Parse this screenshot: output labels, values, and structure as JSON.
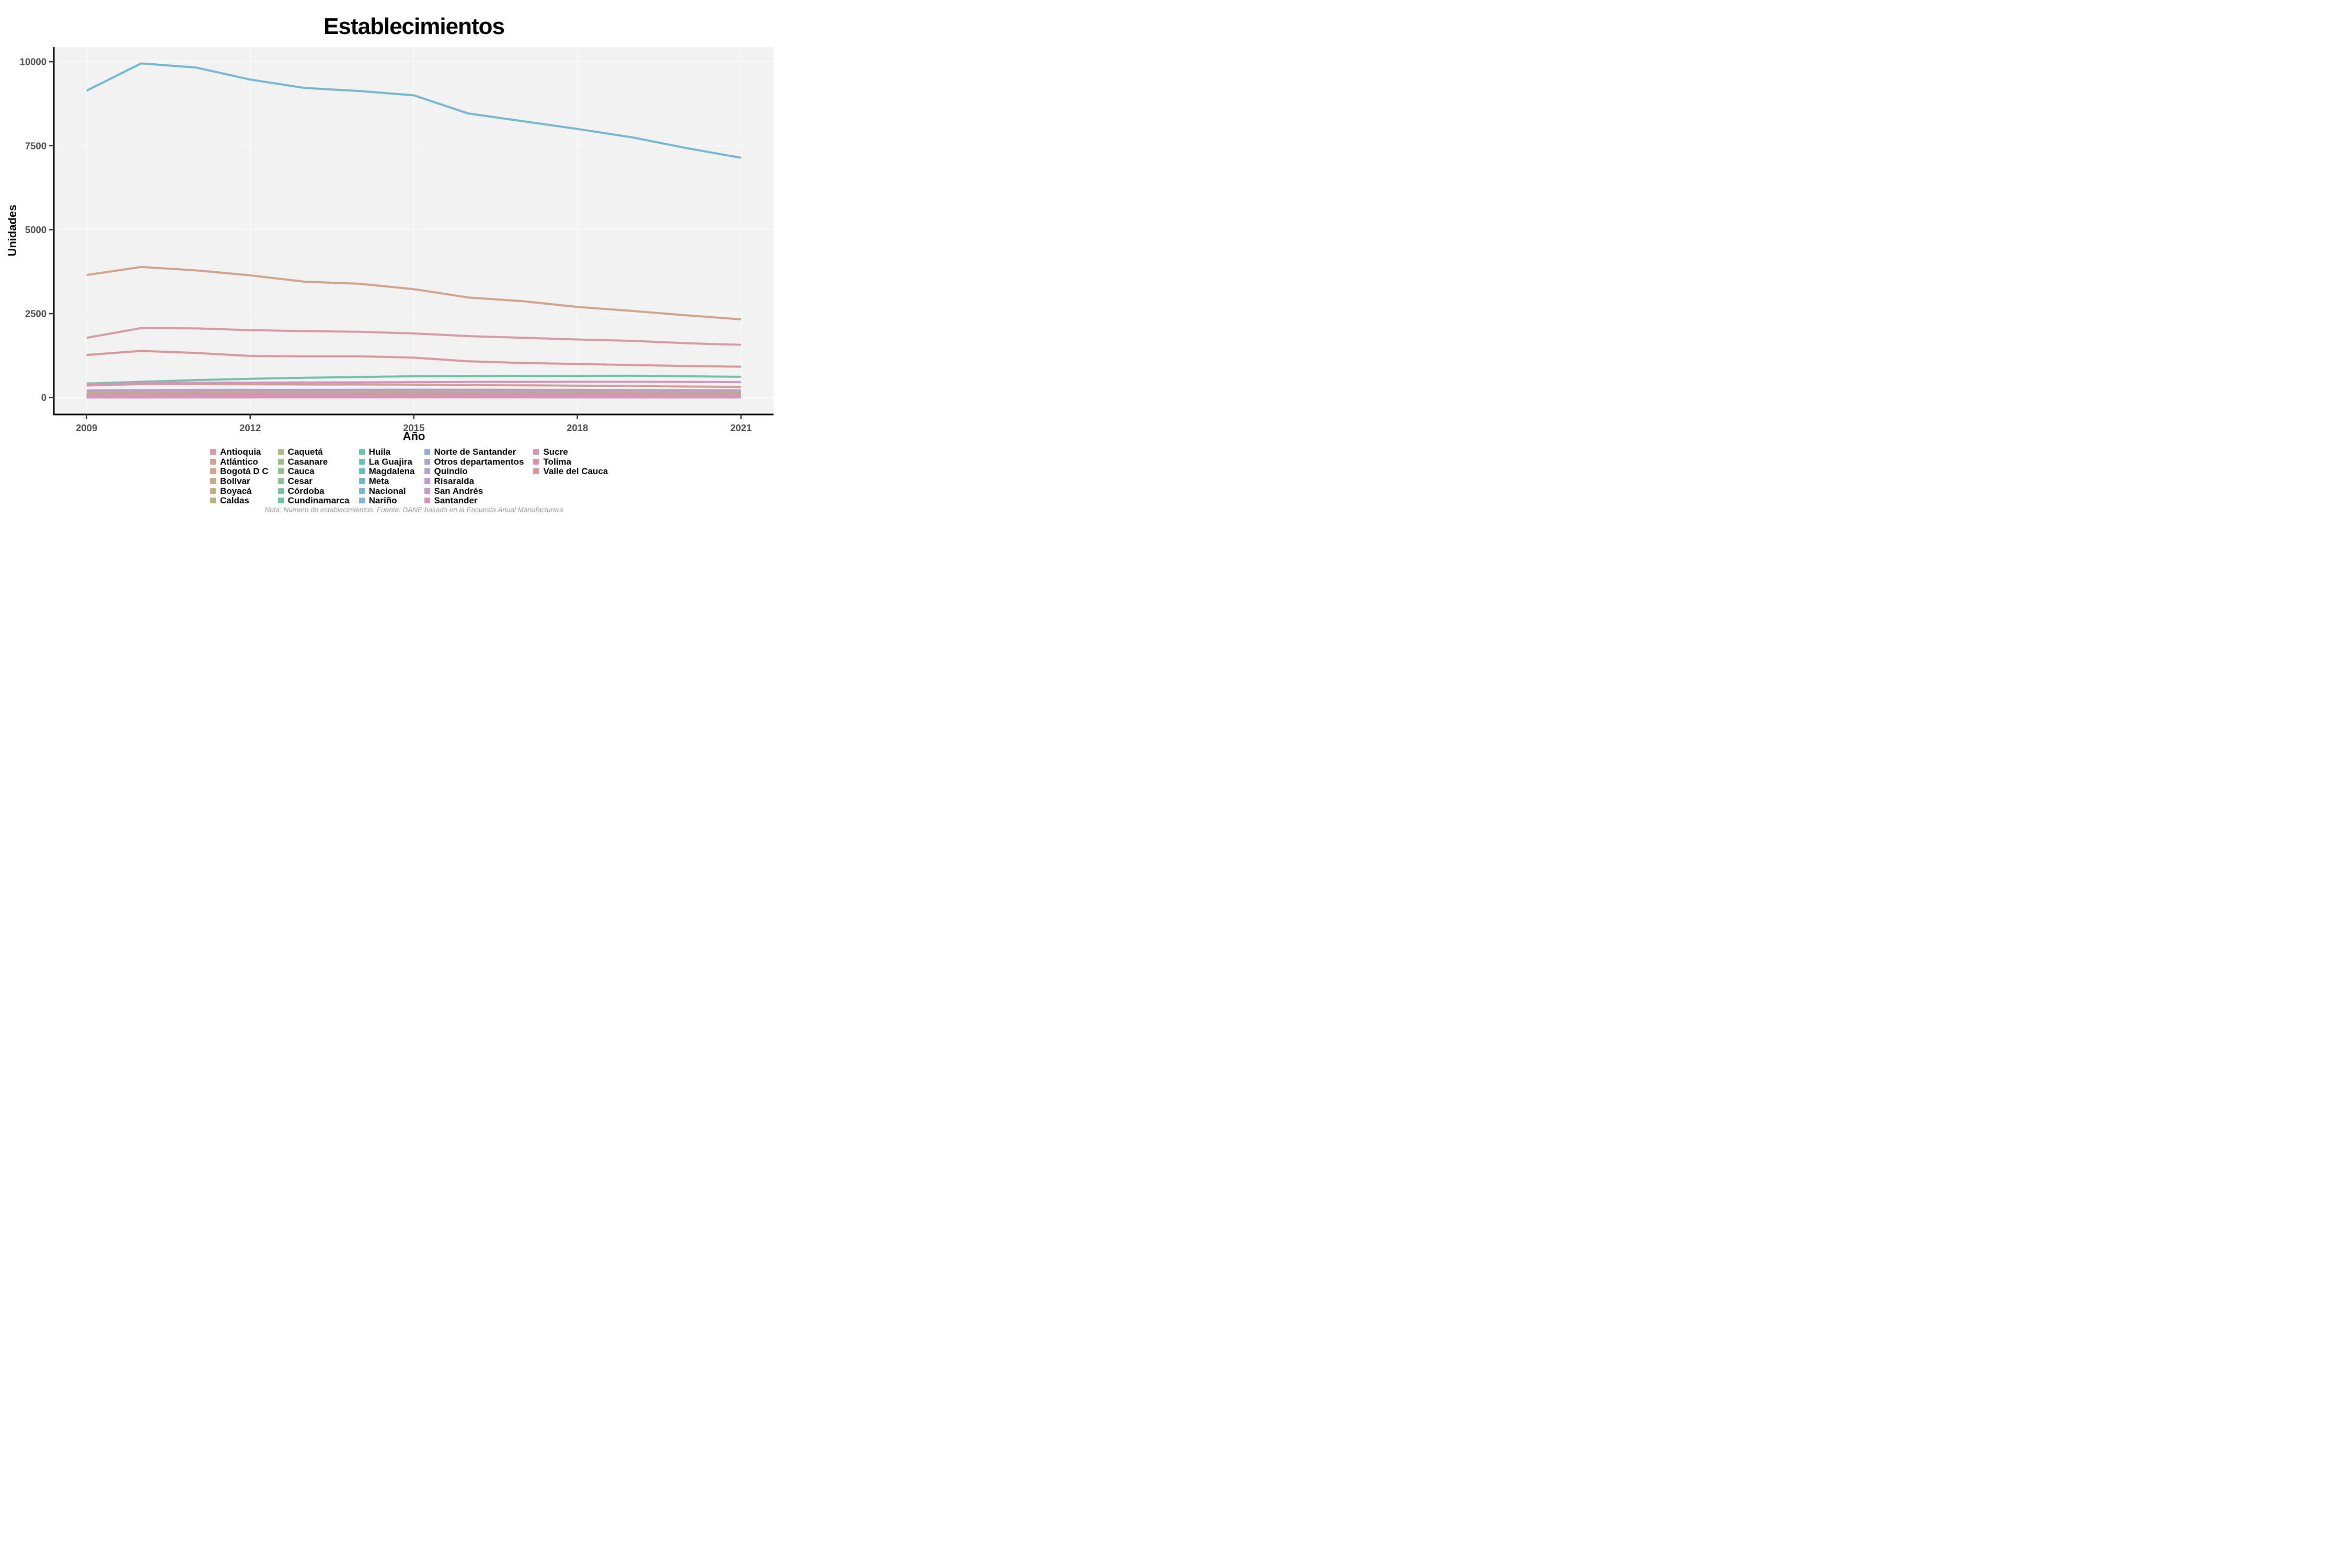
{
  "title": "Establecimientos",
  "note": "Nota: Número de establecimientos. Fuente: DANE basado en la Encuesta Anual Manufacturera",
  "chart_data": {
    "type": "line",
    "title": "Establecimientos",
    "xlabel": "Año",
    "ylabel": "Unidades",
    "x": [
      2009,
      2010,
      2011,
      2012,
      2013,
      2014,
      2015,
      2016,
      2017,
      2018,
      2019,
      2020,
      2021
    ],
    "xticks": [
      2009,
      2012,
      2015,
      2018,
      2021
    ],
    "yticks": [
      0,
      2500,
      5000,
      7500,
      10000
    ],
    "ylim": [
      0,
      10000
    ],
    "grid": true,
    "legend_position": "bottom",
    "legend_columns": 5,
    "panel_bg": "#f2f2f2",
    "grid_color": "#fbfbfb",
    "axis_color": "#000000",
    "tick_color": "#333333",
    "tick_label_color": "#4d4d4d",
    "series": [
      {
        "name": "Antioquia",
        "color": "#d79aa4",
        "values": [
          1780,
          2070,
          2060,
          2010,
          1980,
          1960,
          1910,
          1830,
          1780,
          1730,
          1690,
          1620,
          1570
        ]
      },
      {
        "name": "Atlántico",
        "color": "#d59d97",
        "values": [
          360,
          400,
          400,
          395,
          390,
          390,
          385,
          370,
          365,
          355,
          345,
          330,
          320
        ]
      },
      {
        "name": "Bogotá D C",
        "color": "#d1a28c",
        "values": [
          3650,
          3890,
          3790,
          3640,
          3450,
          3390,
          3230,
          2980,
          2870,
          2700,
          2580,
          2450,
          2330
        ]
      },
      {
        "name": "Bolívar",
        "color": "#caa885",
        "values": [
          130,
          136,
          140,
          142,
          144,
          145,
          146,
          145,
          144,
          142,
          140,
          137,
          135
        ]
      },
      {
        "name": "Boyacá",
        "color": "#c2ae81",
        "values": [
          92,
          96,
          99,
          101,
          102,
          103,
          104,
          103,
          102,
          101,
          99,
          97,
          95
        ]
      },
      {
        "name": "Caldas",
        "color": "#b9b381",
        "values": [
          175,
          182,
          186,
          188,
          190,
          190,
          192,
          190,
          188,
          186,
          184,
          180,
          178
        ]
      },
      {
        "name": "Caquetá",
        "color": "#aeb883",
        "values": [
          14,
          15,
          15,
          16,
          16,
          16,
          17,
          17,
          16,
          16,
          15,
          15,
          14
        ]
      },
      {
        "name": "Casanare",
        "color": "#a2bb88",
        "values": [
          20,
          21,
          22,
          23,
          23,
          24,
          24,
          24,
          23,
          23,
          22,
          21,
          20
        ]
      },
      {
        "name": "Cauca",
        "color": "#96be8e",
        "values": [
          118,
          122,
          126,
          128,
          130,
          131,
          132,
          132,
          131,
          130,
          128,
          126,
          124
        ]
      },
      {
        "name": "Cesar",
        "color": "#89c096",
        "values": [
          40,
          42,
          43,
          44,
          45,
          45,
          46,
          45,
          45,
          44,
          43,
          42,
          41
        ]
      },
      {
        "name": "Córdoba",
        "color": "#7cc19e",
        "values": [
          45,
          47,
          48,
          50,
          50,
          51,
          51,
          51,
          50,
          49,
          48,
          47,
          46
        ]
      },
      {
        "name": "Cundinamarca",
        "color": "#70c2a7",
        "values": [
          420,
          470,
          520,
          560,
          590,
          615,
          635,
          640,
          645,
          645,
          650,
          635,
          620
        ]
      },
      {
        "name": "Huila",
        "color": "#67c2b0",
        "values": [
          70,
          73,
          76,
          78,
          79,
          80,
          81,
          81,
          80,
          79,
          78,
          76,
          74
        ]
      },
      {
        "name": "La Guajira",
        "color": "#62c1b9",
        "values": [
          9,
          10,
          10,
          11,
          11,
          11,
          11,
          11,
          11,
          10,
          10,
          9,
          9
        ]
      },
      {
        "name": "Magdalena",
        "color": "#62bfc1",
        "values": [
          50,
          52,
          54,
          55,
          56,
          57,
          57,
          57,
          56,
          55,
          54,
          53,
          52
        ]
      },
      {
        "name": "Meta",
        "color": "#67bcc8",
        "values": [
          80,
          84,
          87,
          89,
          91,
          92,
          93,
          93,
          92,
          91,
          90,
          88,
          86
        ]
      },
      {
        "name": "Nacional",
        "color": "#72b8ce",
        "values": [
          9140,
          9950,
          9830,
          9470,
          9220,
          9130,
          9000,
          8460,
          8230,
          8000,
          7750,
          7430,
          7140
        ]
      },
      {
        "name": "Nariño",
        "color": "#81b3d2",
        "values": [
          56,
          58,
          60,
          62,
          63,
          63,
          64,
          64,
          63,
          62,
          61,
          60,
          58
        ]
      },
      {
        "name": "Norte de Santander",
        "color": "#93add4",
        "values": [
          100,
          105,
          108,
          110,
          111,
          112,
          112,
          111,
          110,
          108,
          106,
          103,
          100
        ]
      },
      {
        "name": "Otros departamentos",
        "color": "#a4a6d3",
        "values": [
          28,
          29,
          30,
          31,
          31,
          32,
          32,
          32,
          31,
          31,
          30,
          29,
          28
        ]
      },
      {
        "name": "Quindío",
        "color": "#b3a0d0",
        "values": [
          62,
          65,
          67,
          69,
          70,
          71,
          71,
          71,
          70,
          69,
          68,
          66,
          65
        ]
      },
      {
        "name": "Risaralda",
        "color": "#c09aca",
        "values": [
          215,
          225,
          230,
          230,
          230,
          232,
          235,
          235,
          232,
          230,
          228,
          222,
          218
        ]
      },
      {
        "name": "San Andrés",
        "color": "#cb96c3",
        "values": [
          5,
          5,
          6,
          6,
          6,
          6,
          6,
          6,
          6,
          6,
          5,
          5,
          5
        ]
      },
      {
        "name": "Santander",
        "color": "#d294ba",
        "values": [
          400,
          430,
          440,
          445,
          450,
          455,
          460,
          465,
          465,
          470,
          470,
          465,
          460
        ]
      },
      {
        "name": "Sucre",
        "color": "#d994b0",
        "values": [
          34,
          36,
          37,
          38,
          38,
          39,
          39,
          39,
          38,
          38,
          37,
          36,
          35
        ]
      },
      {
        "name": "Tolima",
        "color": "#dc94a5",
        "values": [
          108,
          112,
          115,
          117,
          118,
          119,
          120,
          119,
          118,
          117,
          115,
          112,
          110
        ]
      },
      {
        "name": "Valle del Cauca",
        "color": "#da979b",
        "values": [
          1270,
          1390,
          1330,
          1240,
          1230,
          1230,
          1190,
          1080,
          1030,
          1000,
          970,
          940,
          920
        ]
      }
    ]
  }
}
